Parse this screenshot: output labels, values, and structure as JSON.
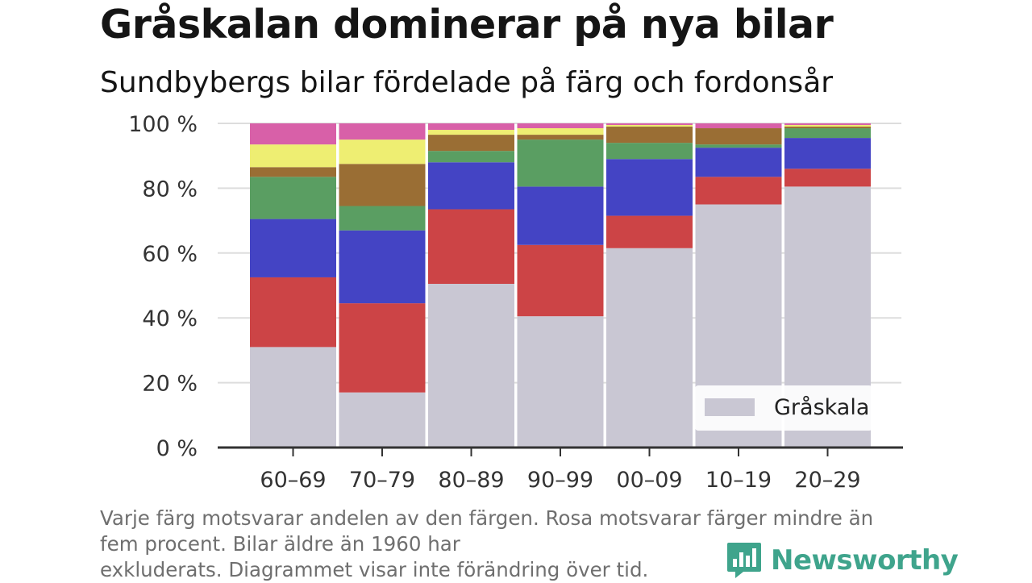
{
  "title": "Gråskalan dominerar på nya bilar",
  "subtitle": "Sundbybergs bilar fördelade på färg och fordonsår",
  "footnote": {
    "line1": "Varje färg motsvarar andelen av den färgen. Rosa motsvarar färger mindre än",
    "line2": "fem procent. Bilar äldre än 1960 har",
    "line3": "exkluderats. Diagrammet visar inte förändring över tid."
  },
  "brand": {
    "name": "Newsworthy",
    "color": "#3fa48c",
    "icon": "bar-chart-speech-bubble-icon"
  },
  "chart_data": {
    "type": "bar",
    "stacked": true,
    "categories": [
      "60–69",
      "70–79",
      "80–89",
      "90–99",
      "00–09",
      "10–19",
      "20–29"
    ],
    "ylim": [
      0,
      100
    ],
    "yticks": [
      0,
      20,
      40,
      60,
      80,
      100
    ],
    "ytick_labels": [
      "0 %",
      "20 %",
      "40 %",
      "60 %",
      "80 %",
      "100 %"
    ],
    "grid": true,
    "legend": {
      "entries": [
        "Gråskala"
      ],
      "position": "bottom-right"
    },
    "series": [
      {
        "name": "Gråskala",
        "color": "#c9c7d3",
        "values": [
          31,
          17,
          50.5,
          40.5,
          61.5,
          75,
          80.5
        ]
      },
      {
        "color": "#cc4446",
        "values": [
          21.5,
          27.5,
          23,
          22,
          10,
          8.5,
          5.5
        ]
      },
      {
        "color": "#4444c4",
        "values": [
          18,
          22.5,
          14.5,
          18,
          17.5,
          9,
          9.5
        ]
      },
      {
        "color": "#5a9e62",
        "values": [
          13,
          7.5,
          3.5,
          14.5,
          5,
          1,
          3
        ]
      },
      {
        "color": "#9a6e34",
        "values": [
          3,
          13,
          5,
          1.5,
          5,
          5,
          0.5
        ]
      },
      {
        "color": "#eeee72",
        "values": [
          7,
          7.5,
          1.5,
          2,
          0.5,
          0,
          0.5
        ]
      },
      {
        "color": "#d860a8",
        "values": [
          6.5,
          5,
          2,
          1.5,
          0.5,
          1.5,
          0.5
        ]
      }
    ]
  }
}
